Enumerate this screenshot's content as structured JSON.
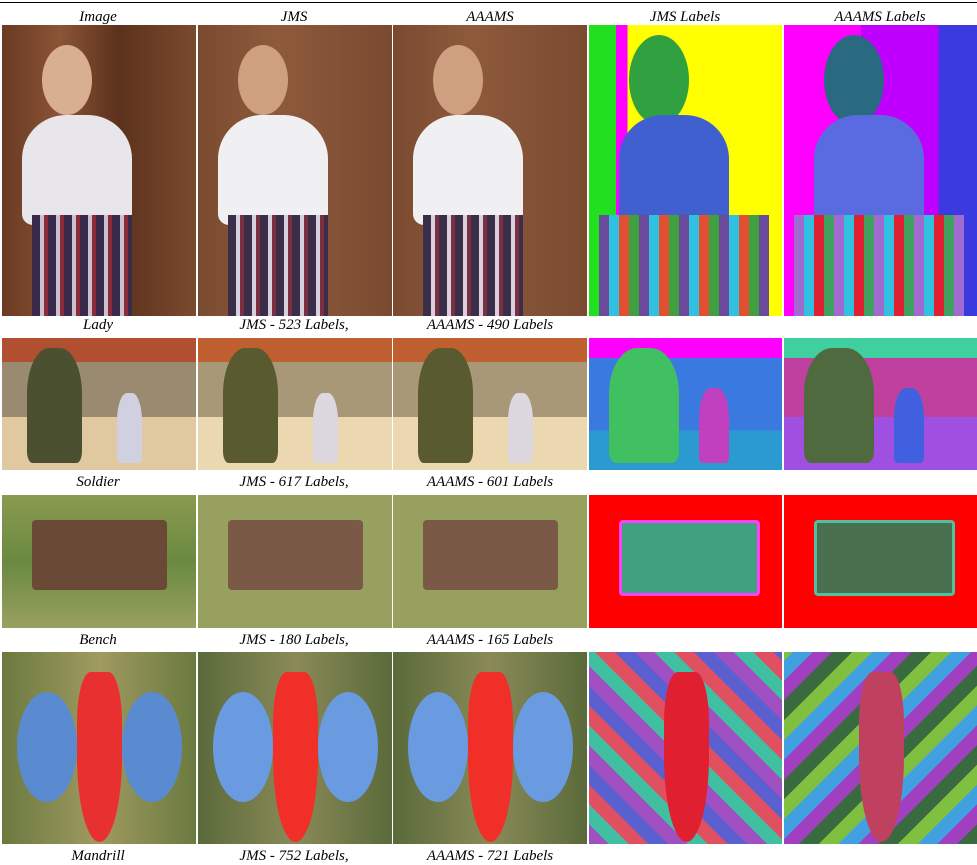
{
  "header": {
    "columns": [
      "Image",
      "JMS",
      "AAAMS",
      "JMS Labels",
      "AAAMS Labels"
    ]
  },
  "rows": [
    {
      "name": "Lady",
      "jms": "JMS - 523 Labels,",
      "aaams": "AAAMS - 490 Labels"
    },
    {
      "name": "Soldier",
      "jms": "JMS - 617 Labels,",
      "aaams": "AAAMS - 601 Labels"
    },
    {
      "name": "Bench",
      "jms": "JMS - 180 Labels,",
      "aaams": "AAAMS - 165 Labels"
    },
    {
      "name": "Mandrill",
      "jms": "JMS - 752 Labels,",
      "aaams": "AAAMS - 721 Labels"
    }
  ]
}
